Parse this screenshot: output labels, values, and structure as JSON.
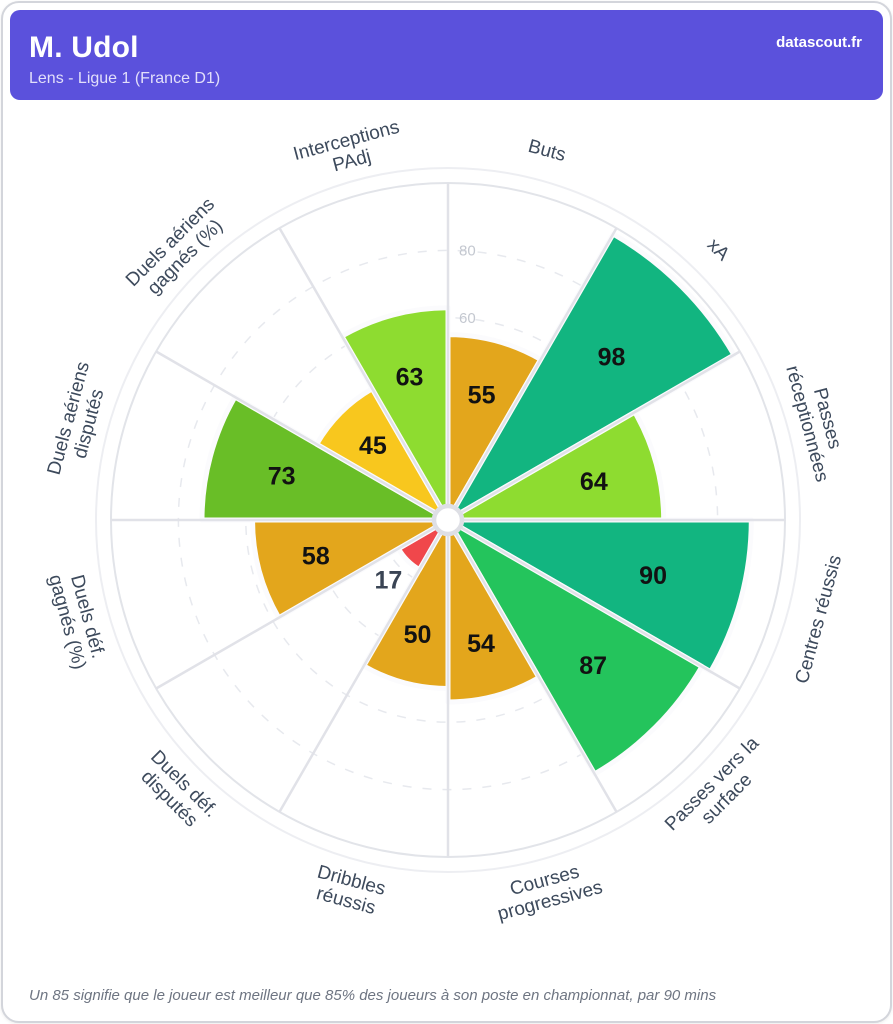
{
  "header": {
    "title": "M. Udol",
    "subtitle": "Lens - Ligue 1 (France D1)",
    "brand": "datascout.fr"
  },
  "footer": {
    "note": "Un 85 signifie que le joueur est meilleur que 85% des joueurs à son poste en championnat, par 90 mins"
  },
  "chart_data": {
    "type": "bar",
    "subtype": "polar-pizza",
    "title": "",
    "axis_range": [
      0,
      100
    ],
    "visible_ticks": [
      60,
      80
    ],
    "grid": "dashed-circles-every-20",
    "start_angle_deg": 0,
    "sector_span_deg": 30,
    "categories": [
      "Buts",
      "xA",
      "Passes réceptionnées",
      "Centres réussis",
      "Passes vers la surface",
      "Courses progressives",
      "Dribbles réussis",
      "Duels déf. disputés",
      "Duels déf. gagnés (%)",
      "Duels aériens disputés",
      "Duels aériens gagnés (%)",
      "Interceptions PAdj"
    ],
    "category_lines": [
      [
        "Buts"
      ],
      [
        "xA"
      ],
      [
        "Passes",
        "réceptionnées"
      ],
      [
        "Centres réussis"
      ],
      [
        "Passes vers la",
        "surface"
      ],
      [
        "Courses",
        "progressives"
      ],
      [
        "Dribbles",
        "réussis"
      ],
      [
        "Duels déf.",
        "disputés"
      ],
      [
        "Duels déf.",
        "gagnés (%)"
      ],
      [
        "Duels aériens",
        "disputés"
      ],
      [
        "Duels aériens",
        "gagnés (%)"
      ],
      [
        "Interceptions",
        "PAdj"
      ]
    ],
    "values": [
      55,
      98,
      64,
      90,
      87,
      54,
      50,
      17,
      58,
      73,
      45,
      63
    ],
    "slice_colors": [
      "#E3A61C",
      "#12B580",
      "#8EDC30",
      "#12B580",
      "#24C45C",
      "#E3A61C",
      "#E3A61C",
      "#F0474B",
      "#E3A61C",
      "#69BE27",
      "#F8C71E",
      "#8EDC30"
    ],
    "value_label_colors": [
      "#121212",
      "#121212",
      "#121212",
      "#121212",
      "#121212",
      "#121212",
      "#121212",
      "#3A4454",
      "#121212",
      "#121212",
      "#121212",
      "#121212"
    ]
  },
  "style": {
    "header_bg": "#5B51DC",
    "category_label_color": "#3D4A5C",
    "tick_label_color": "#C4C8D0",
    "grid_dashed_color": "#E7E9EE",
    "outer_ring_color": "#E2E4E9",
    "outer_ring2_color": "#EDEEF2",
    "spoke_color": "#E1E2E8",
    "slice_gap_color": "#FBFBFD",
    "center_dot_stroke": "#DEDFE5"
  }
}
